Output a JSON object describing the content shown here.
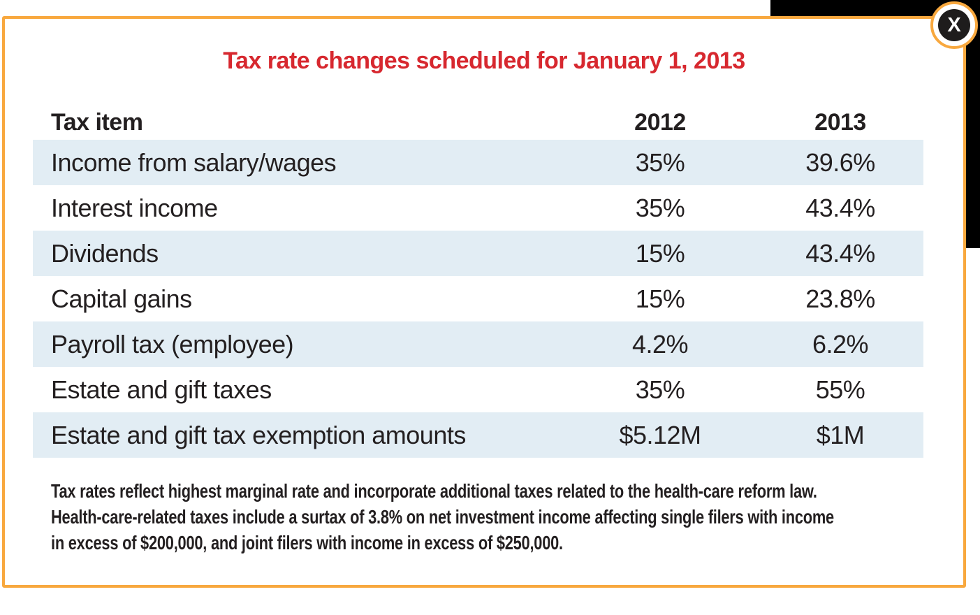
{
  "window": {
    "close_label": "X"
  },
  "title": "Tax rate changes scheduled for January 1, 2013",
  "table": {
    "columns": [
      "Tax item",
      "2012",
      "2013"
    ],
    "rows": [
      {
        "item": "Income from salary/wages",
        "y2012": "35%",
        "y2013": "39.6%"
      },
      {
        "item": "Interest income",
        "y2012": "35%",
        "y2013": "43.4%"
      },
      {
        "item": "Dividends",
        "y2012": "15%",
        "y2013": "43.4%"
      },
      {
        "item": "Capital gains",
        "y2012": "15%",
        "y2013": "23.8%"
      },
      {
        "item": "Payroll tax (employee)",
        "y2012": "4.2%",
        "y2013": "6.2%"
      },
      {
        "item": "Estate and gift taxes",
        "y2012": "35%",
        "y2013": "55%"
      },
      {
        "item": "Estate and gift tax exemption amounts",
        "y2012": "$5.12M",
        "y2013": "$1M"
      }
    ]
  },
  "footnote_lines": [
    "Tax rates reflect highest marginal rate and incorporate additional taxes related to the health-care reform law.",
    "Health-care-related taxes include a surtax of 3.8% on net investment income affecting single filers with income",
    "in excess of $200,000, and joint filers with income in excess of $250,000."
  ],
  "colors": {
    "accent_orange": "#F8A83E",
    "title_red": "#D7282F",
    "row_blue": "#E2EDF4",
    "panel_black": "#000000",
    "text_dark": "#231F20",
    "close_button_bg": "#1E1C1C"
  }
}
